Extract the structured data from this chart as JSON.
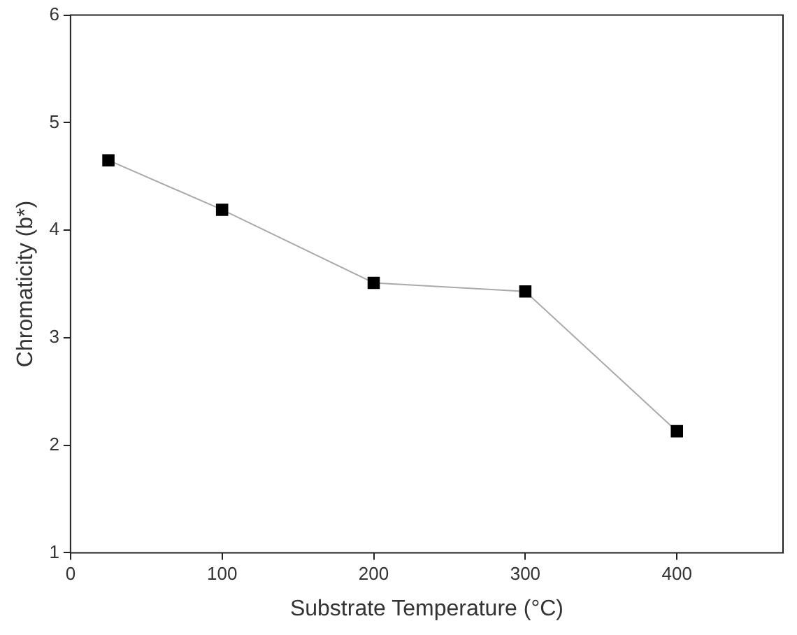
{
  "chart_data": {
    "type": "line",
    "xlabel": "Substrate Temperature (°C)",
    "ylabel": "Chromaticity (b*)",
    "x": [
      25,
      100,
      200,
      300,
      400
    ],
    "series": [
      {
        "color": "#000000",
        "values": [
          4.65,
          4.19,
          3.51,
          3.43,
          2.13
        ]
      }
    ],
    "xlim": [
      0,
      470
    ],
    "xticks": [
      0,
      100,
      200,
      300,
      400
    ],
    "ylim": [
      1,
      6
    ],
    "yticks": [
      1,
      2,
      3,
      4,
      5,
      6
    ],
    "grid": false,
    "legend": false,
    "marker": "square",
    "line_style": "solid"
  }
}
